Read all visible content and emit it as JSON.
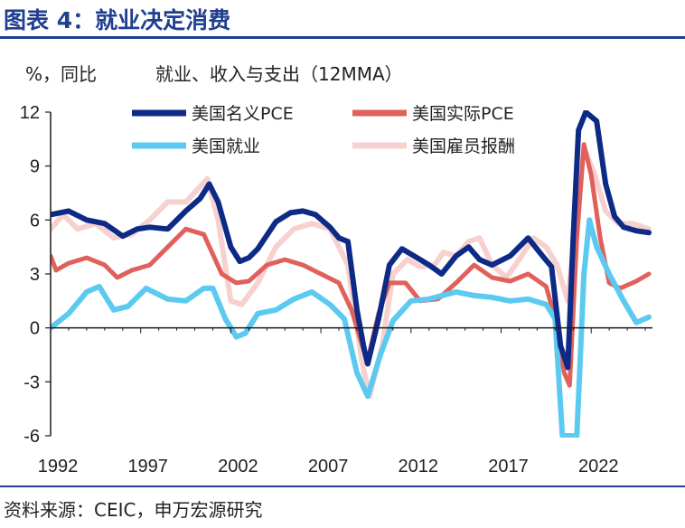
{
  "figure_title": "图表 4：就业决定消费",
  "source": "资料来源：CEIC，申万宏源研究",
  "colors": {
    "title": "#1f3f8f",
    "axis": "#1a1a1a"
  },
  "chart_data": {
    "type": "line",
    "title": "就业、收入与支出（12MMA）",
    "ylabel": "%，同比",
    "xlabel": "",
    "ylim": [
      -6,
      12
    ],
    "xlim": [
      1992,
      2025.4
    ],
    "grid": false,
    "legend_position": "top",
    "yticks": [
      12,
      9,
      6,
      3,
      0,
      -3,
      -6
    ],
    "xticks": [
      1992,
      1997,
      2002,
      2007,
      2012,
      2017,
      2022
    ],
    "xtick_labels": [
      "1992",
      "1997",
      "2002",
      "2007",
      "2012",
      "2017",
      "2022"
    ],
    "series": [
      {
        "name": "美国名义PCE",
        "color": "#0c2a86",
        "width": 6,
        "points": [
          [
            1992,
            6.3
          ],
          [
            1993,
            6.5
          ],
          [
            1994,
            6.0
          ],
          [
            1995,
            5.8
          ],
          [
            1996,
            5.1
          ],
          [
            1996.8,
            5.5
          ],
          [
            1997.5,
            5.6
          ],
          [
            1998.5,
            5.5
          ],
          [
            1999.5,
            6.5
          ],
          [
            2000.3,
            7.2
          ],
          [
            2000.8,
            8.0
          ],
          [
            2001.3,
            7.0
          ],
          [
            2002,
            4.5
          ],
          [
            2002.5,
            3.7
          ],
          [
            2003,
            3.9
          ],
          [
            2003.5,
            4.4
          ],
          [
            2004.5,
            5.9
          ],
          [
            2005.3,
            6.4
          ],
          [
            2006,
            6.5
          ],
          [
            2006.7,
            6.3
          ],
          [
            2007.5,
            5.6
          ],
          [
            2008,
            5.0
          ],
          [
            2008.5,
            4.8
          ],
          [
            2009,
            1.0
          ],
          [
            2009.4,
            -1.2
          ],
          [
            2009.6,
            -2.0
          ],
          [
            2010.2,
            0.5
          ],
          [
            2010.8,
            3.5
          ],
          [
            2011.5,
            4.4
          ],
          [
            2012.5,
            3.8
          ],
          [
            2013,
            3.5
          ],
          [
            2013.7,
            3.0
          ],
          [
            2014.5,
            4.0
          ],
          [
            2015.2,
            4.5
          ],
          [
            2015.8,
            3.8
          ],
          [
            2016.5,
            3.5
          ],
          [
            2017.5,
            4.0
          ],
          [
            2018.5,
            5.0
          ],
          [
            2019.3,
            4.0
          ],
          [
            2019.8,
            3.4
          ],
          [
            2020.3,
            -1.0
          ],
          [
            2020.7,
            -2.2
          ],
          [
            2021,
            5.0
          ],
          [
            2021.3,
            11.0
          ],
          [
            2021.7,
            12.0
          ],
          [
            2022.3,
            11.5
          ],
          [
            2022.8,
            8.0
          ],
          [
            2023.3,
            6.2
          ],
          [
            2023.8,
            5.6
          ],
          [
            2024.5,
            5.4
          ],
          [
            2025.2,
            5.3
          ]
        ]
      },
      {
        "name": "美国实际PCE",
        "color": "#e0605c",
        "width": 5,
        "points": [
          [
            1992,
            4.0
          ],
          [
            1992.3,
            3.2
          ],
          [
            1993,
            3.6
          ],
          [
            1994,
            3.9
          ],
          [
            1995,
            3.5
          ],
          [
            1995.7,
            2.8
          ],
          [
            1996.5,
            3.2
          ],
          [
            1997.5,
            3.5
          ],
          [
            1998.5,
            4.5
          ],
          [
            1999.5,
            5.5
          ],
          [
            2000.5,
            5.2
          ],
          [
            2001.5,
            3.0
          ],
          [
            2002.3,
            2.5
          ],
          [
            2003,
            2.6
          ],
          [
            2004,
            3.5
          ],
          [
            2005,
            3.8
          ],
          [
            2006,
            3.5
          ],
          [
            2007,
            3.0
          ],
          [
            2008,
            2.5
          ],
          [
            2008.7,
            1.0
          ],
          [
            2009.3,
            -1.0
          ],
          [
            2009.6,
            -1.8
          ],
          [
            2010.2,
            0.8
          ],
          [
            2010.8,
            2.5
          ],
          [
            2011.7,
            2.5
          ],
          [
            2012.5,
            1.5
          ],
          [
            2013.5,
            1.6
          ],
          [
            2014.5,
            2.5
          ],
          [
            2015.5,
            3.5
          ],
          [
            2016.5,
            2.8
          ],
          [
            2017.5,
            2.6
          ],
          [
            2018.5,
            3.0
          ],
          [
            2019.5,
            2.3
          ],
          [
            2020,
            0.5
          ],
          [
            2020.5,
            -2.5
          ],
          [
            2020.8,
            -3.2
          ],
          [
            2021.2,
            5.0
          ],
          [
            2021.6,
            10.2
          ],
          [
            2022,
            8.5
          ],
          [
            2022.5,
            5.0
          ],
          [
            2023,
            2.5
          ],
          [
            2023.6,
            2.2
          ],
          [
            2024.5,
            2.6
          ],
          [
            2025.2,
            3.0
          ]
        ]
      },
      {
        "name": "美国就业",
        "color": "#5ccaf0",
        "width": 6,
        "points": [
          [
            1992,
            0.0
          ],
          [
            1993,
            0.8
          ],
          [
            1994,
            2.0
          ],
          [
            1994.7,
            2.3
          ],
          [
            1995.5,
            1.0
          ],
          [
            1996.3,
            1.2
          ],
          [
            1997.3,
            2.2
          ],
          [
            1998.5,
            1.6
          ],
          [
            1999.5,
            1.5
          ],
          [
            2000.5,
            2.2
          ],
          [
            2001,
            2.2
          ],
          [
            2001.7,
            0.5
          ],
          [
            2002.3,
            -0.5
          ],
          [
            2002.8,
            -0.3
          ],
          [
            2003.5,
            0.8
          ],
          [
            2004.5,
            1.0
          ],
          [
            2005.5,
            1.6
          ],
          [
            2006.5,
            2.0
          ],
          [
            2007.5,
            1.3
          ],
          [
            2008.3,
            0.5
          ],
          [
            2009,
            -2.5
          ],
          [
            2009.6,
            -3.8
          ],
          [
            2010.3,
            -1.5
          ],
          [
            2011,
            0.4
          ],
          [
            2012,
            1.5
          ],
          [
            2013,
            1.6
          ],
          [
            2014.5,
            2.0
          ],
          [
            2015.5,
            1.8
          ],
          [
            2016.5,
            1.7
          ],
          [
            2017.5,
            1.5
          ],
          [
            2018.5,
            1.6
          ],
          [
            2019.5,
            1.3
          ],
          [
            2020,
            0.5
          ],
          [
            2020.4,
            -6.0
          ],
          [
            2021.2,
            -6.0
          ],
          [
            2021.6,
            3.0
          ],
          [
            2021.9,
            6.0
          ],
          [
            2022.3,
            4.5
          ],
          [
            2023,
            3.0
          ],
          [
            2023.8,
            1.5
          ],
          [
            2024.5,
            0.3
          ],
          [
            2025.2,
            0.6
          ]
        ]
      },
      {
        "name": "美国雇员报酬",
        "color": "#f7d1cf",
        "width": 6,
        "points": [
          [
            1992,
            5.5
          ],
          [
            1992.7,
            6.3
          ],
          [
            1993.5,
            5.5
          ],
          [
            1994.5,
            5.8
          ],
          [
            1995.5,
            5.0
          ],
          [
            1996.5,
            5.2
          ],
          [
            1997.5,
            6.0
          ],
          [
            1998.5,
            7.0
          ],
          [
            1999.5,
            7.0
          ],
          [
            2000.7,
            8.3
          ],
          [
            2001.3,
            6.0
          ],
          [
            2002,
            1.5
          ],
          [
            2002.6,
            1.3
          ],
          [
            2003.5,
            2.5
          ],
          [
            2004.5,
            4.5
          ],
          [
            2005.5,
            5.5
          ],
          [
            2006.5,
            5.8
          ],
          [
            2007.5,
            5.5
          ],
          [
            2008.5,
            3.5
          ],
          [
            2009.3,
            -2.0
          ],
          [
            2009.7,
            -3.8
          ],
          [
            2010.4,
            -1.0
          ],
          [
            2011,
            3.0
          ],
          [
            2011.8,
            3.8
          ],
          [
            2012.5,
            3.4
          ],
          [
            2013.3,
            3.5
          ],
          [
            2013.8,
            4.2
          ],
          [
            2014.5,
            4.0
          ],
          [
            2015.2,
            4.8
          ],
          [
            2015.8,
            5.0
          ],
          [
            2016.5,
            3.5
          ],
          [
            2017.3,
            2.8
          ],
          [
            2018,
            3.8
          ],
          [
            2018.8,
            5.0
          ],
          [
            2019.5,
            4.5
          ],
          [
            2020.1,
            3.5
          ],
          [
            2020.7,
            1.5
          ],
          [
            2021.1,
            5.5
          ],
          [
            2021.6,
            10.0
          ],
          [
            2022.2,
            8.5
          ],
          [
            2022.8,
            6.5
          ],
          [
            2023.5,
            5.8
          ],
          [
            2024.3,
            5.8
          ],
          [
            2025.2,
            5.5
          ]
        ]
      }
    ]
  }
}
